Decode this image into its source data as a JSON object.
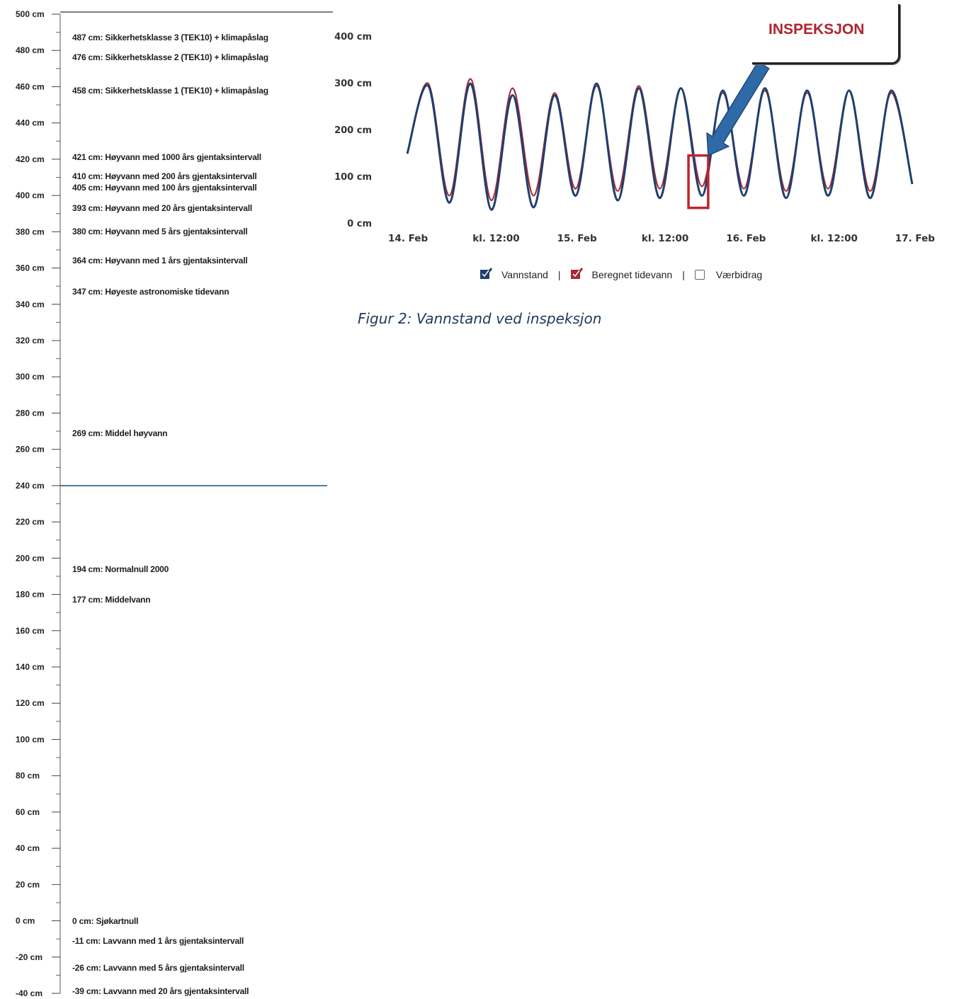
{
  "chart_data": [
    {
      "type": "ruler",
      "ylim": [
        -40,
        500
      ],
      "tick_step": 20,
      "tick_labels": [
        "500 cm",
        "480 cm",
        "460 cm",
        "440 cm",
        "420 cm",
        "400 cm",
        "380 cm",
        "360 cm",
        "340 cm",
        "320 cm",
        "300 cm",
        "280 cm",
        "260 cm",
        "240 cm",
        "220 cm",
        "200 cm",
        "180 cm",
        "160 cm",
        "140 cm",
        "120 cm",
        "100 cm",
        "80 cm",
        "60 cm",
        "40 cm",
        "20 cm",
        "0 cm",
        "-20 cm",
        "-40 cm"
      ],
      "current_level": 240,
      "current_level_color": "#2c5a8a",
      "reference_levels": [
        {
          "value": 487,
          "label": "487 cm: Sikkerhetsklasse 3 (TEK10) + klimapåslag"
        },
        {
          "value": 476,
          "label": "476 cm: Sikkerhetsklasse 2 (TEK10) + klimapåslag"
        },
        {
          "value": 458,
          "label": "458 cm: Sikkerhetsklasse 1 (TEK10) + klimapåslag"
        },
        {
          "value": 421,
          "label": "421 cm: Høyvann med 1000 års gjentaksintervall"
        },
        {
          "value": 410,
          "label": "410 cm: Høyvann med 200 års gjentaksintervall"
        },
        {
          "value": 405,
          "label": "405 cm: Høyvann med 100 års gjentaksintervall"
        },
        {
          "value": 393,
          "label": "393 cm: Høyvann med 20 års gjentaksintervall"
        },
        {
          "value": 380,
          "label": "380 cm: Høyvann med 5 års gjentaksintervall"
        },
        {
          "value": 364,
          "label": "364 cm: Høyvann med 1 års gjentaksintervall"
        },
        {
          "value": 347,
          "label": "347 cm: Høyeste astronomiske tidevann"
        },
        {
          "value": 269,
          "label": "269 cm: Middel høyvann"
        },
        {
          "value": 194,
          "label": "194 cm: Normalnull 2000"
        },
        {
          "value": 177,
          "label": "177 cm: Middelvann"
        },
        {
          "value": 0,
          "label": "0 cm: Sjøkartnull"
        },
        {
          "value": -11,
          "label": "-11 cm: Lavvann med 1 års gjentaksintervall"
        },
        {
          "value": -26,
          "label": "-26 cm: Lavvann med 5 års gjentaksintervall"
        },
        {
          "value": -39,
          "label": "-39 cm: Lavvann med 20 års gjentaksintervall"
        }
      ]
    },
    {
      "type": "line",
      "ylim": [
        0,
        400
      ],
      "ytick_labels": [
        "400 cm",
        "300 cm",
        "200 cm",
        "100 cm",
        "0 cm"
      ],
      "xlim": [
        0,
        72
      ],
      "xtick_labels": [
        "14. Feb",
        "kl. 12:00",
        "15. Feb",
        "kl. 12:00",
        "16. Feb",
        "kl. 12:00",
        "17. Feb"
      ],
      "series": [
        {
          "name": "Vannstand",
          "color": "#1f3f6e",
          "x": [
            0,
            3,
            6,
            9,
            12,
            15,
            18,
            21,
            24,
            27,
            30,
            33,
            36,
            39,
            42,
            45,
            48,
            51,
            54,
            57,
            60,
            63,
            66,
            69,
            72
          ],
          "y": [
            150,
            295,
            45,
            300,
            30,
            275,
            35,
            275,
            60,
            300,
            50,
            290,
            55,
            290,
            60,
            285,
            60,
            290,
            55,
            285,
            60,
            285,
            55,
            285,
            85
          ]
        },
        {
          "name": "Beregnet tidevann",
          "color": "#a52a35",
          "x": [
            0,
            3,
            6,
            9,
            12,
            15,
            18,
            21,
            24,
            27,
            30,
            33,
            36,
            39,
            42,
            45,
            48,
            51,
            54,
            57,
            60,
            63,
            66,
            69,
            72
          ],
          "y": [
            150,
            300,
            60,
            310,
            50,
            290,
            60,
            280,
            75,
            295,
            70,
            295,
            75,
            290,
            80,
            280,
            75,
            285,
            70,
            280,
            75,
            285,
            70,
            280,
            85
          ]
        }
      ],
      "legend": [
        {
          "label": "Vannstand",
          "checked": true,
          "color": "#1f3f6e"
        },
        {
          "label": "Beregnet tidevann",
          "checked": true,
          "color": "#a52a35"
        },
        {
          "label": "Værbidrag",
          "checked": false,
          "color": "#666666"
        }
      ],
      "annotation": {
        "text": "INSPEKSJON",
        "color": "#b0242f",
        "x_start": 40.5,
        "x_end": 42.5,
        "y_low": 40,
        "y_high": 140
      }
    }
  ],
  "caption": "Figur 2: Vannstand ved inspeksjon"
}
